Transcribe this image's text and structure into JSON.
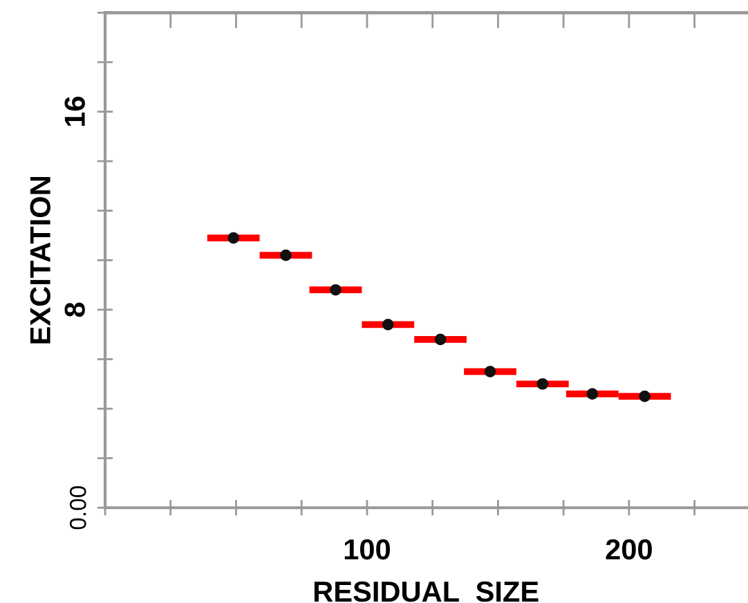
{
  "chart_data": {
    "type": "scatter",
    "xlabel": "RESIDUAL  SIZE",
    "ylabel": "EXCITATION",
    "x": [
      49,
      69,
      88,
      108,
      128,
      147,
      167,
      186,
      206
    ],
    "series": [
      {
        "color": "#111111",
        "values": [
          10.9,
          10.2,
          8.8,
          7.4,
          6.8,
          5.5,
          5.0,
          4.6,
          4.5
        ],
        "xerrors": [
          10,
          10,
          10,
          10,
          10,
          10,
          10,
          10,
          10
        ]
      }
    ],
    "marker": "circle",
    "grid": false,
    "legend": false,
    "xlim": [
      0,
      245
    ],
    "ylim": [
      0,
      20
    ],
    "xticks": [
      {
        "value": 0,
        "label": null
      },
      {
        "value": 25,
        "label": null
      },
      {
        "value": 50,
        "label": null
      },
      {
        "value": 75,
        "label": null
      },
      100,
      {
        "value": 125,
        "label": null
      },
      {
        "value": 150,
        "label": null
      },
      {
        "value": 175,
        "label": null
      },
      200,
      {
        "value": 225,
        "label": null
      }
    ],
    "yticks": [
      {
        "value": 0,
        "label": "0.00"
      },
      {
        "value": 2,
        "label": null
      },
      {
        "value": 4,
        "label": null
      },
      {
        "value": 6,
        "label": null
      },
      8,
      {
        "value": 10,
        "label": null
      },
      {
        "value": 12,
        "label": null
      },
      {
        "value": 14,
        "label": null
      },
      16,
      {
        "value": 18,
        "label": null
      },
      {
        "value": 20,
        "label": null
      }
    ]
  }
}
